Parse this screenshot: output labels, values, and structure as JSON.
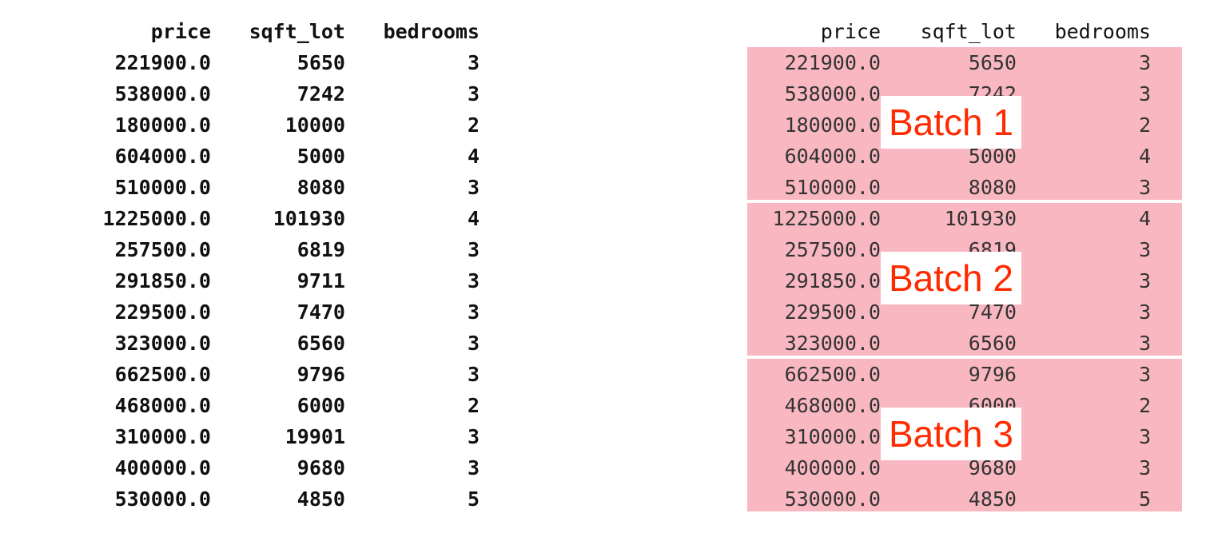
{
  "columns": [
    "price",
    "sqft_lot",
    "bedrooms"
  ],
  "rows": [
    [
      "221900.0",
      "5650",
      "3"
    ],
    [
      "538000.0",
      "7242",
      "3"
    ],
    [
      "180000.0",
      "10000",
      "2"
    ],
    [
      "604000.0",
      "5000",
      "4"
    ],
    [
      "510000.0",
      "8080",
      "3"
    ],
    [
      "1225000.0",
      "101930",
      "4"
    ],
    [
      "257500.0",
      "6819",
      "3"
    ],
    [
      "291850.0",
      "9711",
      "3"
    ],
    [
      "229500.0",
      "7470",
      "3"
    ],
    [
      "323000.0",
      "6560",
      "3"
    ],
    [
      "662500.0",
      "9796",
      "3"
    ],
    [
      "468000.0",
      "6000",
      "2"
    ],
    [
      "310000.0",
      "19901",
      "3"
    ],
    [
      "400000.0",
      "9680",
      "3"
    ],
    [
      "530000.0",
      "4850",
      "5"
    ]
  ],
  "batches": [
    {
      "label": "Batch 1",
      "start_row": 0,
      "end_row": 4
    },
    {
      "label": "Batch 2",
      "start_row": 5,
      "end_row": 9
    },
    {
      "label": "Batch 3",
      "start_row": 10,
      "end_row": 14
    }
  ],
  "colors": {
    "batch_fill": "#f9b7c2",
    "batch_label": "#ff2a00"
  }
}
